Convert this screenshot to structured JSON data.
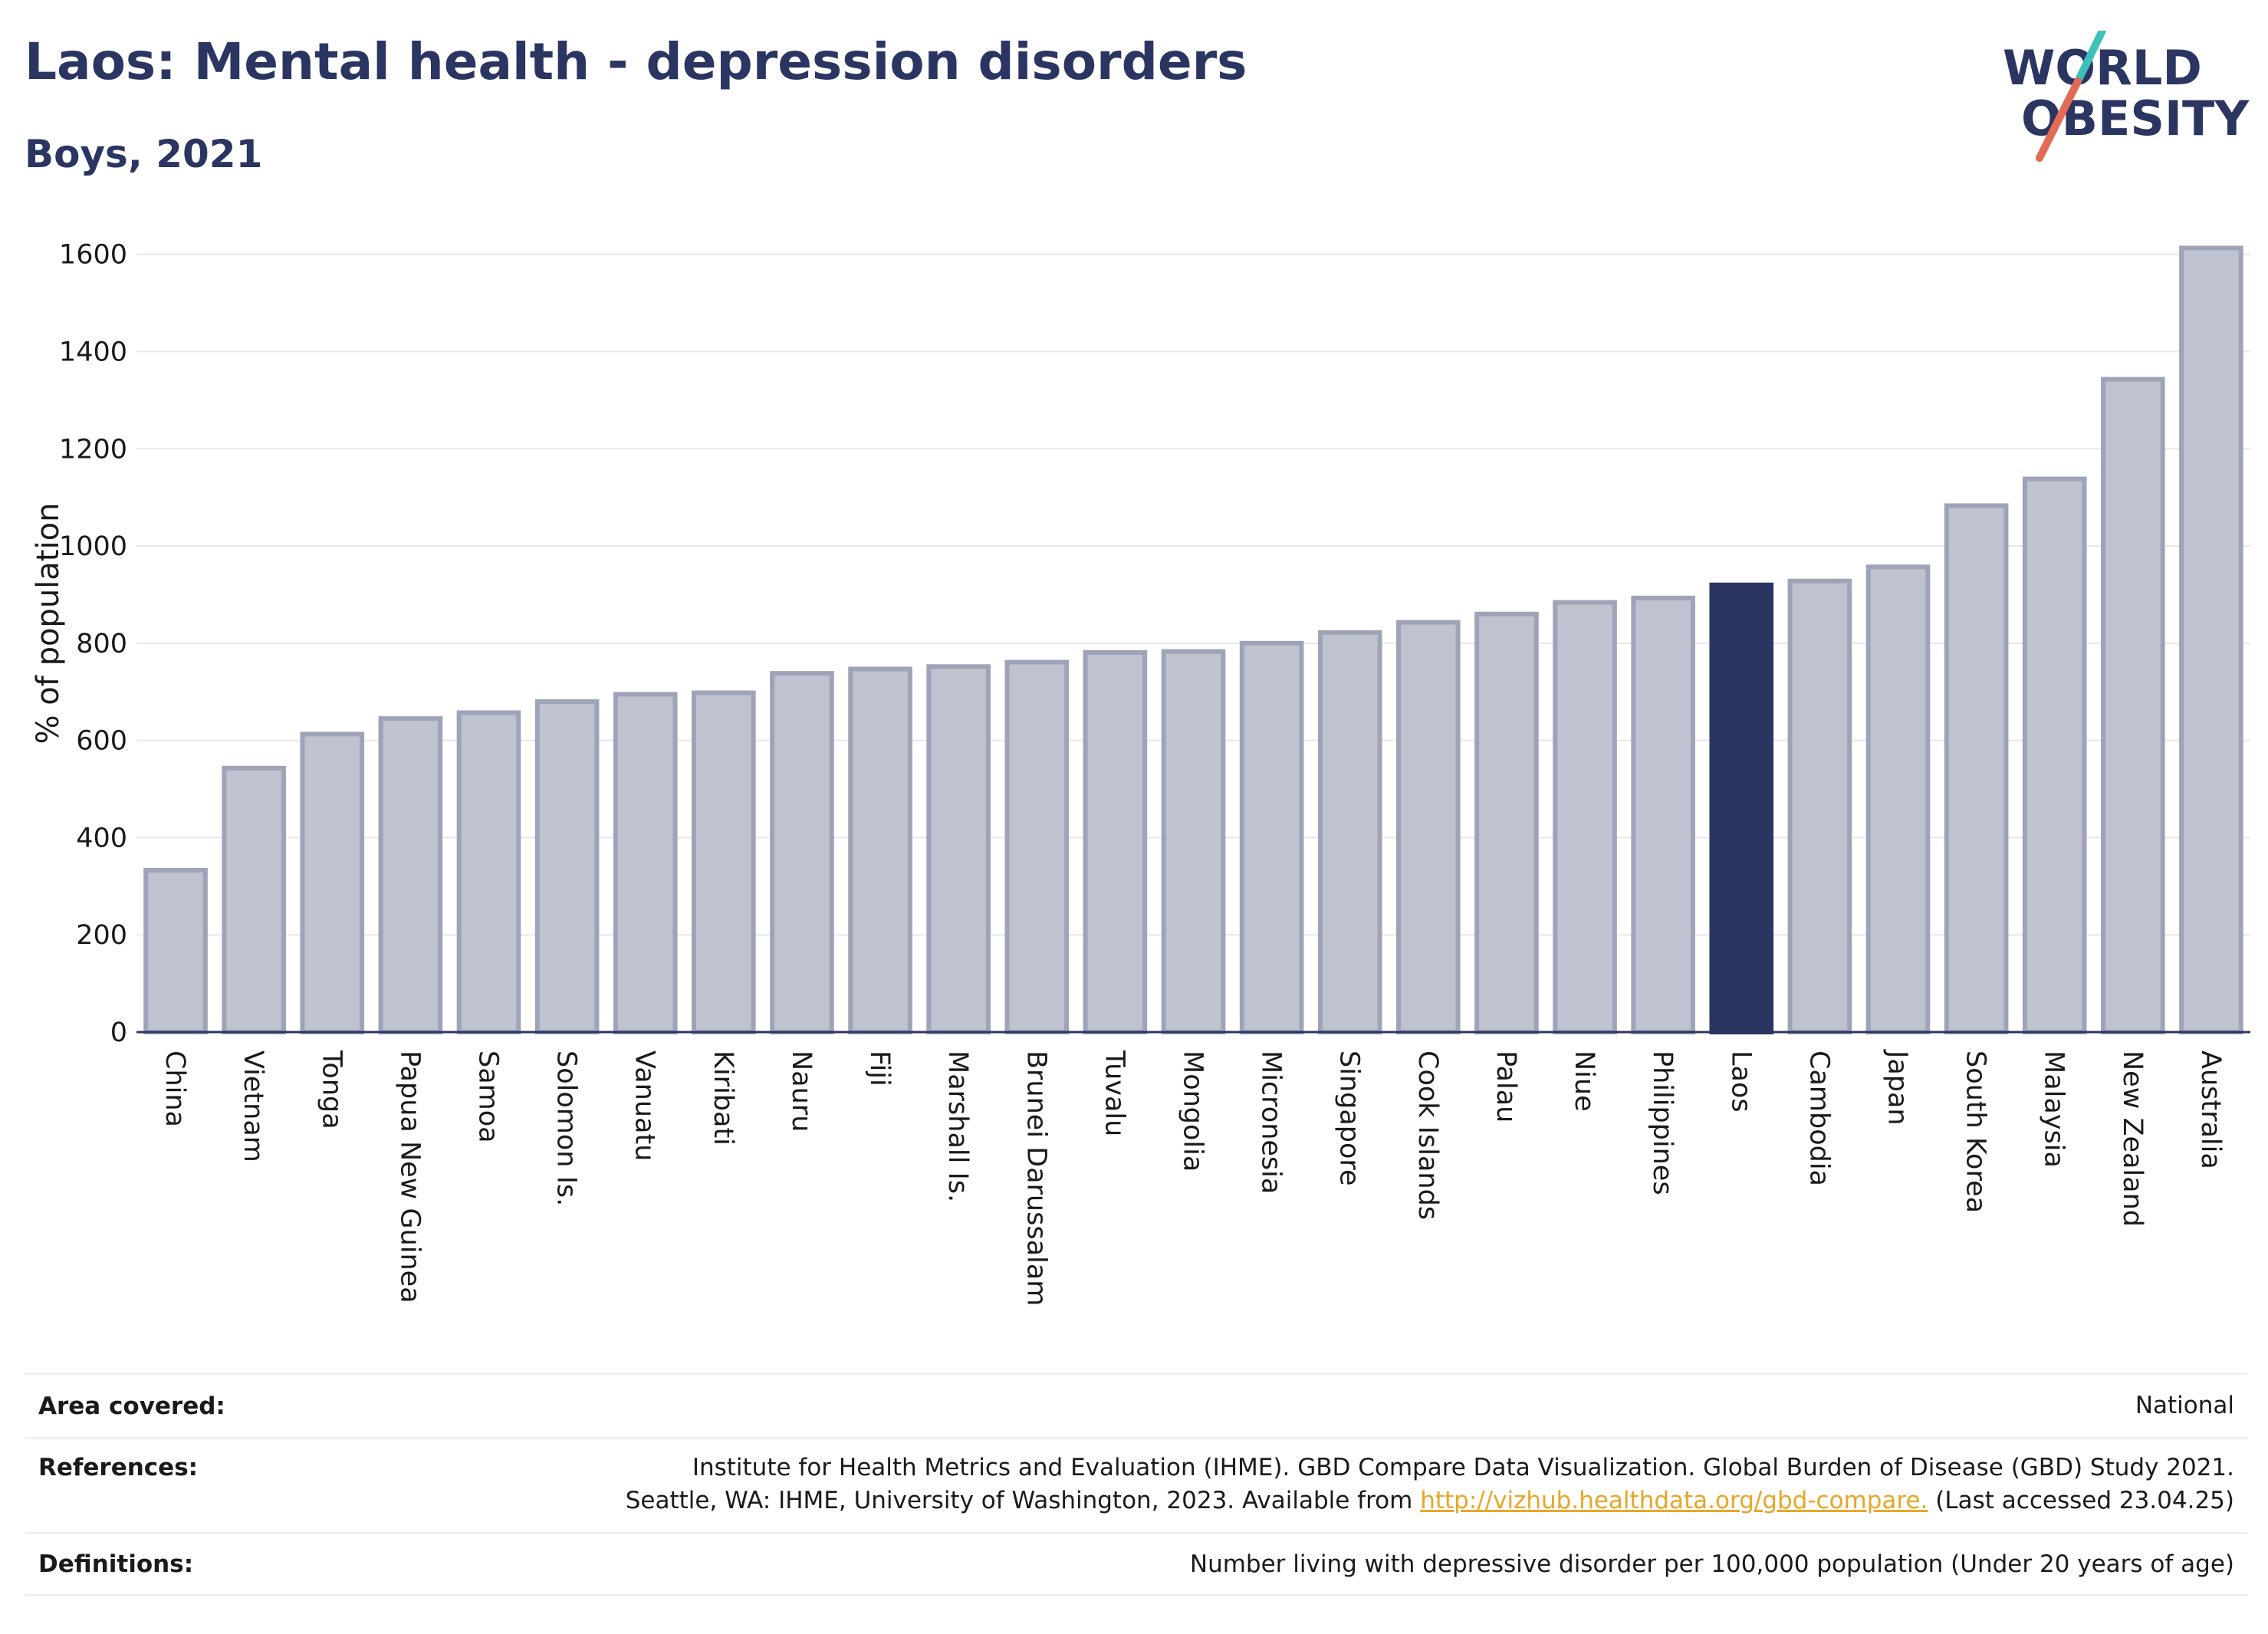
{
  "header": {
    "title": "Laos: Mental health - depression disorders",
    "subtitle": "Boys, 2021"
  },
  "logo": {
    "line1": "WORLD",
    "line2": "OBESITY",
    "accent_teal": "#3fbfb9",
    "accent_coral": "#e36a55",
    "text_color": "#2b3561"
  },
  "colors": {
    "bar_fill": "#bfc2cf",
    "bar_stroke": "#9ea3b8",
    "highlight": "#2b3561",
    "grid": "#e6e8ee",
    "axis": "#2b3561"
  },
  "chart_data": {
    "type": "bar",
    "ylabel": "% of population",
    "ylim": [
      0,
      1650
    ],
    "yticks": [
      0,
      200,
      400,
      600,
      800,
      1000,
      1200,
      1400,
      1600
    ],
    "grid": true,
    "highlight": "Laos",
    "categories": [
      "China",
      "Vietnam",
      "Tonga",
      "Papua New Guinea",
      "Samoa",
      "Solomon Is.",
      "Vanuatu",
      "Kiribati",
      "Nauru",
      "Fiji",
      "Marshall Is.",
      "Brunei Darussalam",
      "Tuvalu",
      "Mongolia",
      "Micronesia",
      "Singapore",
      "Cook Islands",
      "Palau",
      "Niue",
      "Philippines",
      "Laos",
      "Cambodia",
      "Japan",
      "South Korea",
      "Malaysia",
      "New Zealand",
      "Australia"
    ],
    "values": [
      333,
      543,
      613,
      645,
      657,
      680,
      695,
      698,
      738,
      747,
      752,
      761,
      781,
      783,
      800,
      822,
      843,
      860,
      884,
      893,
      920,
      928,
      957,
      1083,
      1138,
      1343,
      1613
    ]
  },
  "info": {
    "area_label": "Area covered:",
    "area_value": "National",
    "references_label": "References:",
    "references_line1": "Institute for Health Metrics and Evaluation (IHME). GBD Compare Data Visualization. Global Burden of Disease (GBD) Study 2021.",
    "references_line2_pre": "Seattle, WA: IHME, University of Washington, 2023. Available from ",
    "references_link": "http://vizhub.healthdata.org/gbd-compare.",
    "references_line2_post": " (Last accessed 23.04.25)",
    "definitions_label": "Definitions:",
    "definitions_value": "Number living with depressive disorder per 100,000 population (Under 20 years of age)"
  }
}
